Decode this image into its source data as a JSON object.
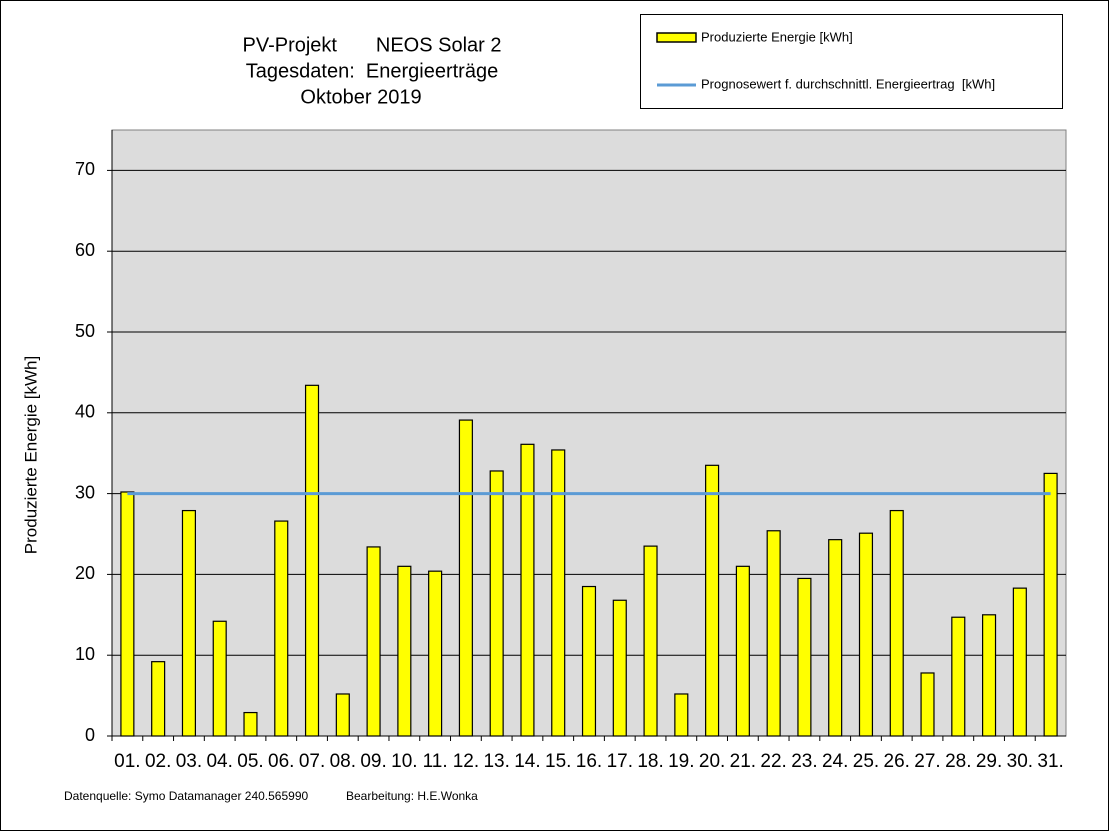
{
  "chart_data": {
    "type": "bar",
    "title_lines": [
      "PV-Projekt       NEOS Solar 2",
      "Tagesdaten:  Energieerträge",
      "Oktober 2019"
    ],
    "ylabel": "Produzierte Energie [kWh]",
    "categories": [
      "01.",
      "02.",
      "03.",
      "04.",
      "05.",
      "06.",
      "07.",
      "08.",
      "09.",
      "10.",
      "11.",
      "12.",
      "13.",
      "14.",
      "15.",
      "16.",
      "17.",
      "18.",
      "19.",
      "20.",
      "21.",
      "22.",
      "23.",
      "24.",
      "25.",
      "26.",
      "27.",
      "28.",
      "29.",
      "30.",
      "31."
    ],
    "series": [
      {
        "name": "Produzierte Energie [kWh]",
        "color": "#ffff00",
        "values": [
          30.2,
          9.2,
          27.9,
          14.2,
          2.9,
          26.6,
          43.4,
          5.2,
          23.4,
          21.0,
          20.4,
          39.1,
          32.8,
          36.1,
          35.4,
          18.5,
          16.8,
          23.5,
          5.2,
          33.5,
          21.0,
          25.4,
          19.5,
          24.3,
          25.1,
          27.9,
          7.8,
          14.7,
          15.0,
          18.3,
          32.5
        ]
      }
    ],
    "reference_line": {
      "name": "Prognosewert f. durchschnittl. Energieertrag  [kWh]",
      "color": "#5b9bd5",
      "value": 30
    },
    "ylim": [
      0,
      75
    ],
    "yticks": [
      0,
      10,
      20,
      30,
      40,
      50,
      60,
      70
    ],
    "grid": true,
    "legend": "top-right",
    "footer": [
      "Datenquelle: Symo Datamanager 240.565990",
      "Bearbeitung: H.E.Wonka"
    ]
  }
}
